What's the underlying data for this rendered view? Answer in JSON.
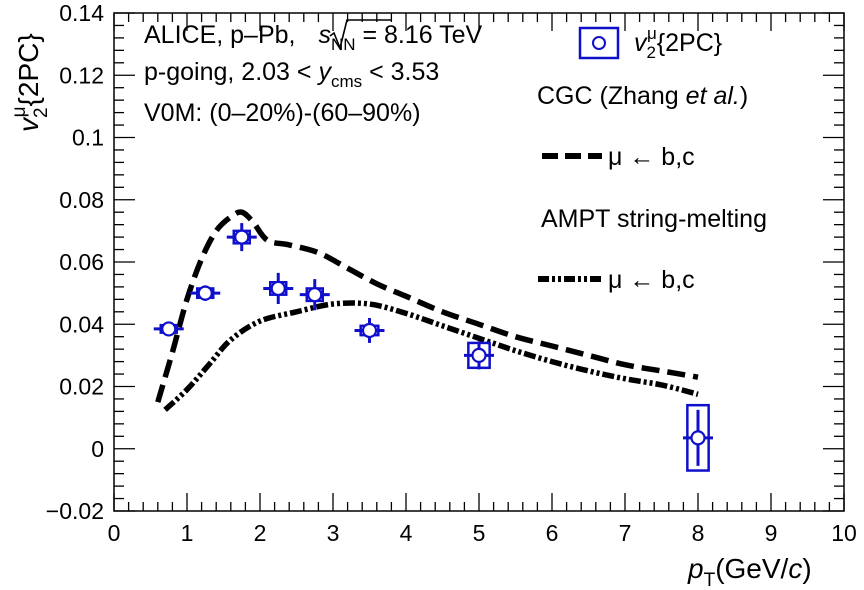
{
  "chart_data": {
    "type": "scatter",
    "xlabel": "p",
    "xlabel_sub": "T",
    "xlabel_unit_prefix": "(GeV/",
    "xlabel_unit_italic": "c",
    "xlabel_unit_suffix": ")",
    "ylabel_main": "v",
    "ylabel_sub": "2",
    "ylabel_sup": "μ",
    "ylabel_tail": "{2PC}",
    "xlim": [
      0,
      10
    ],
    "ylim": [
      -0.02,
      0.14
    ],
    "x_ticks": [
      "0",
      "1",
      "2",
      "3",
      "4",
      "5",
      "6",
      "7",
      "8",
      "9",
      "10"
    ],
    "y_ticks": [
      "−0.02",
      "0",
      "0.02",
      "0.04",
      "0.06",
      "0.08",
      "0.1",
      "0.12",
      "0.14"
    ],
    "annotations": {
      "line1_prefix": "ALICE, p–Pb, ",
      "line1_s": "s",
      "line1_sub": "NN",
      "line1_suffix": " = 8.16 TeV",
      "line2_prefix": "p-going, 2.03 < ",
      "line2_y": "y",
      "line2_sub": "cms",
      "line2_suffix": " < 3.53",
      "line3": "V0M: (0–20%)-(60–90%)"
    },
    "legend": {
      "data_label_main": "v",
      "data_label_sub": "2",
      "data_label_sup": "μ",
      "data_label_tail": "{2PC}",
      "cgc_header_prefix": "CGC (Zhang ",
      "cgc_header_italic": "et al.",
      "cgc_header_suffix": ")",
      "cgc_entry": "μ ← b,c",
      "ampt_header": "AMPT string-melting",
      "ampt_entry": "μ ← b,c"
    },
    "colors": {
      "data": "#1010cc",
      "model": "#000000"
    },
    "series": [
      {
        "role": "data",
        "points": [
          {
            "x": 0.75,
            "y": 0.0385,
            "xerr": 0.25,
            "yerr": 0.0015,
            "syst_y": 0.0012
          },
          {
            "x": 1.25,
            "y": 0.05,
            "xerr": 0.25,
            "yerr": 0.0025,
            "syst_y": 0.0015
          },
          {
            "x": 1.75,
            "y": 0.068,
            "xerr": 0.25,
            "yerr": 0.0045,
            "syst_y": 0.002
          },
          {
            "x": 2.25,
            "y": 0.0515,
            "xerr": 0.25,
            "yerr": 0.005,
            "syst_y": 0.002
          },
          {
            "x": 2.75,
            "y": 0.0495,
            "xerr": 0.25,
            "yerr": 0.005,
            "syst_y": 0.002
          },
          {
            "x": 3.5,
            "y": 0.038,
            "xerr": 0.5,
            "yerr": 0.004,
            "syst_y": 0.0015
          },
          {
            "x": 5.0,
            "y": 0.03,
            "xerr": 1.0,
            "yerr": 0.0045,
            "syst_y": 0.004
          },
          {
            "x": 8.0,
            "y": 0.0035,
            "xerr": 1.0,
            "yerr": 0.009,
            "syst_y": 0.0105
          }
        ]
      },
      {
        "role": "cgc",
        "style": "dashed",
        "x": [
          0.6,
          0.8,
          1.0,
          1.2,
          1.4,
          1.6,
          1.75,
          1.9,
          2.1,
          2.4,
          2.8,
          3.2,
          3.6,
          4.0,
          4.5,
          5.0,
          5.5,
          6.0,
          6.5,
          7.0,
          7.5,
          8.0
        ],
        "y": [
          0.015,
          0.031,
          0.048,
          0.061,
          0.07,
          0.0745,
          0.076,
          0.073,
          0.067,
          0.0655,
          0.063,
          0.058,
          0.053,
          0.049,
          0.044,
          0.04,
          0.036,
          0.033,
          0.03,
          0.027,
          0.025,
          0.023
        ]
      },
      {
        "role": "ampt",
        "style": "dash-dot-dot",
        "x": [
          0.7,
          1.0,
          1.3,
          1.6,
          2.0,
          2.5,
          3.0,
          3.5,
          4.0,
          4.5,
          5.0,
          5.5,
          6.0,
          6.5,
          7.0,
          7.5,
          8.0
        ],
        "y": [
          0.0125,
          0.019,
          0.027,
          0.035,
          0.041,
          0.044,
          0.0465,
          0.0465,
          0.0435,
          0.0395,
          0.0355,
          0.0315,
          0.028,
          0.025,
          0.0225,
          0.0205,
          0.0175
        ]
      }
    ]
  }
}
